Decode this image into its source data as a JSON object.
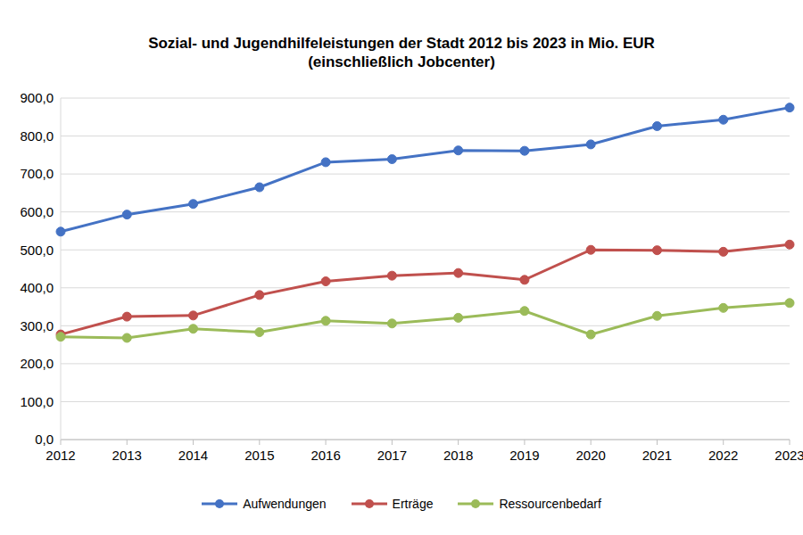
{
  "chart_data": {
    "type": "line",
    "title": "Sozial- und Jugendhilfeleistungen der Stadt 2012 bis 2023 in Mio. EUR",
    "subtitle": "(einschließlich Jobcenter)",
    "categories": [
      "2012",
      "2013",
      "2014",
      "2015",
      "2016",
      "2017",
      "2018",
      "2019",
      "2020",
      "2021",
      "2022",
      "2023"
    ],
    "series": [
      {
        "name": "Aufwendungen",
        "color": "#4472c4",
        "values": [
          548,
          593,
          621,
          665,
          731,
          739,
          762,
          761,
          778,
          826,
          843,
          875
        ]
      },
      {
        "name": "Erträge",
        "color": "#c0504d",
        "values": [
          277,
          324,
          327,
          381,
          417,
          432,
          439,
          421,
          500,
          499,
          495,
          514
        ]
      },
      {
        "name": "Ressourcenbedarf",
        "color": "#9bbb59",
        "values": [
          271,
          268,
          292,
          283,
          313,
          306,
          321,
          339,
          277,
          326,
          347,
          360
        ]
      }
    ],
    "ylim": [
      0,
      900
    ],
    "yticks": [
      {
        "value": 0,
        "label": "0,0"
      },
      {
        "value": 100,
        "label": "100,0"
      },
      {
        "value": 200,
        "label": "200,0"
      },
      {
        "value": 300,
        "label": "300,0"
      },
      {
        "value": 400,
        "label": "400,0"
      },
      {
        "value": 500,
        "label": "500,0"
      },
      {
        "value": 600,
        "label": "600,0"
      },
      {
        "value": 700,
        "label": "700,0"
      },
      {
        "value": 800,
        "label": "800,0"
      },
      {
        "value": 900,
        "label": "900,0"
      }
    ],
    "grid": true,
    "legend": "bottom",
    "marker": "circle"
  }
}
